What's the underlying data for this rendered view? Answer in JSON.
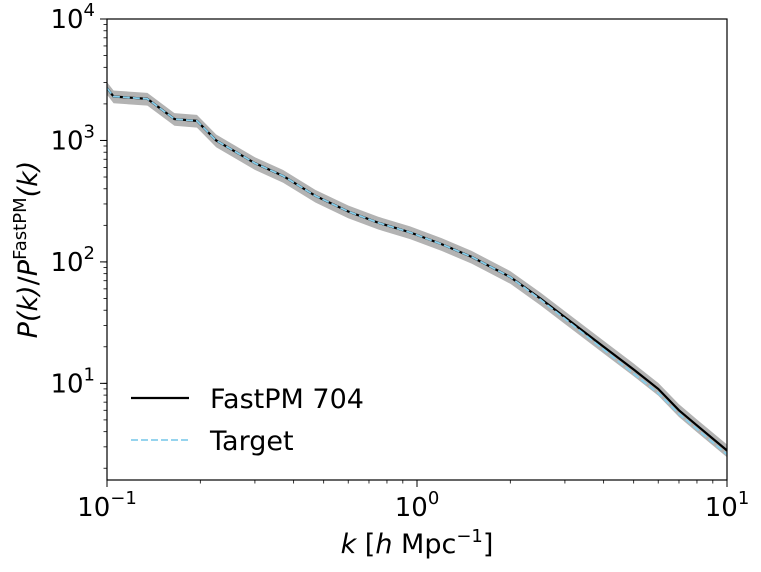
{
  "chart_data": {
    "type": "line",
    "xscale": "log",
    "yscale": "log",
    "xlim": [
      0.1,
      10
    ],
    "ylim": [
      1.6,
      10000
    ],
    "grid": false,
    "legend_position": "lower-left",
    "xlabel": {
      "italic": "k",
      "text": " [",
      "unit_italic": "h",
      "unit_rest": " Mpc",
      "sup": "−1",
      "close": "]"
    },
    "ylabel": {
      "num": "P(k)",
      "den": "P",
      "sup": "FastPM",
      "tail": "(k)"
    },
    "x_ticks": [
      {
        "value": 0.1,
        "base": "10",
        "exp": "−1"
      },
      {
        "value": 1,
        "base": "10",
        "exp": "0"
      },
      {
        "value": 10,
        "base": "10",
        "exp": "1"
      }
    ],
    "y_ticks": [
      {
        "value": 10,
        "base": "10",
        "exp": "1"
      },
      {
        "value": 100,
        "base": "10",
        "exp": "2"
      },
      {
        "value": 1000,
        "base": "10",
        "exp": "3"
      },
      {
        "value": 10000,
        "base": "10",
        "exp": "4"
      }
    ],
    "series": [
      {
        "name": "FastPM 704",
        "color": "#000000",
        "style": "solid",
        "band": {
          "color": "#b3b3b3",
          "rel_width": 0.12
        },
        "x": [
          0.1,
          0.105,
          0.135,
          0.165,
          0.195,
          0.225,
          0.3,
          0.37,
          0.47,
          0.6,
          0.75,
          0.95,
          1.2,
          1.5,
          2.0,
          2.5,
          3.0,
          4.0,
          5.0,
          6.0,
          7.0,
          8.0,
          10.0
        ],
        "y": [
          2700,
          2300,
          2200,
          1500,
          1450,
          1000,
          650,
          510,
          350,
          260,
          210,
          175,
          140,
          110,
          75,
          50,
          35,
          20,
          13,
          9,
          6,
          4.5,
          2.8
        ]
      },
      {
        "name": "Target",
        "color": "#87ceeb",
        "style": "dashed",
        "x": [
          0.1,
          0.105,
          0.135,
          0.165,
          0.195,
          0.225,
          0.3,
          0.37,
          0.47,
          0.6,
          0.75,
          0.95,
          1.2,
          1.5,
          2.0,
          2.5,
          3.0,
          4.0,
          5.0,
          6.0,
          7.0,
          8.0,
          10.0
        ],
        "y": [
          2700,
          2300,
          2200,
          1500,
          1450,
          1000,
          650,
          510,
          350,
          260,
          210,
          175,
          140,
          110,
          75,
          49,
          34,
          19,
          12,
          8.3,
          5.6,
          4.2,
          2.6
        ]
      }
    ]
  }
}
